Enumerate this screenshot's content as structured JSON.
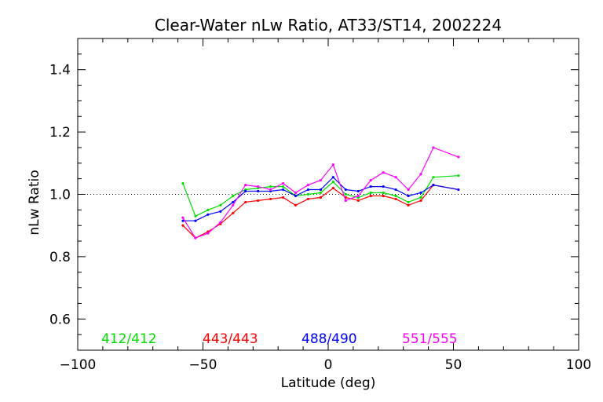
{
  "chart_data": {
    "type": "line",
    "title": "Clear-Water nLw Ratio, AT33/ST14, 2002224",
    "xlabel": "Latitude (deg)",
    "ylabel": "nLw Ratio",
    "xlim": [
      -100,
      100
    ],
    "ylim": [
      0.5,
      1.5
    ],
    "x_ticks": [
      -100,
      -50,
      0,
      50,
      100
    ],
    "x_tick_labels": [
      "−100",
      "−50",
      "0",
      "50",
      "100"
    ],
    "y_ticks": [
      0.6,
      0.8,
      1.0,
      1.2,
      1.4
    ],
    "y_tick_labels": [
      "0.6",
      "0.8",
      "1.0",
      "1.2",
      "1.4"
    ],
    "reference_line": {
      "y": 1.0,
      "style": "dotted"
    },
    "grid": false,
    "legend_placement": "bottom inside plot",
    "x": [
      -58,
      -53,
      -48,
      -43,
      -38,
      -33,
      -28,
      -23,
      -18,
      -13,
      -8,
      -3,
      2,
      7,
      12,
      17,
      22,
      27,
      32,
      37,
      42,
      52
    ],
    "series": [
      {
        "name": "412/412",
        "color": "#00dd00",
        "values": [
          1.035,
          0.93,
          0.95,
          0.965,
          0.995,
          1.015,
          1.02,
          1.025,
          1.025,
          0.995,
          1.0,
          1.005,
          1.04,
          1.0,
          0.99,
          1.005,
          1.005,
          0.995,
          0.975,
          0.99,
          1.055,
          1.06
        ]
      },
      {
        "name": "443/443",
        "color": "#ff0000",
        "values": [
          0.9,
          0.86,
          0.88,
          0.905,
          0.94,
          0.975,
          0.98,
          0.985,
          0.99,
          0.965,
          0.985,
          0.99,
          1.02,
          0.99,
          0.98,
          0.995,
          0.995,
          0.985,
          0.965,
          0.98,
          1.03,
          1.015
        ]
      },
      {
        "name": "488/490",
        "color": "#0000ff",
        "values": [
          0.915,
          0.915,
          0.935,
          0.945,
          0.975,
          1.01,
          1.01,
          1.01,
          1.015,
          0.995,
          1.015,
          1.015,
          1.055,
          1.015,
          1.01,
          1.025,
          1.025,
          1.015,
          0.995,
          1.005,
          1.03,
          1.015
        ]
      },
      {
        "name": "551/555",
        "color": "#ff00ff",
        "values": [
          0.925,
          0.86,
          0.875,
          0.91,
          0.965,
          1.03,
          1.025,
          1.015,
          1.035,
          1.005,
          1.03,
          1.045,
          1.095,
          0.98,
          0.995,
          1.045,
          1.07,
          1.055,
          1.015,
          1.065,
          1.15,
          1.12
        ]
      }
    ]
  }
}
